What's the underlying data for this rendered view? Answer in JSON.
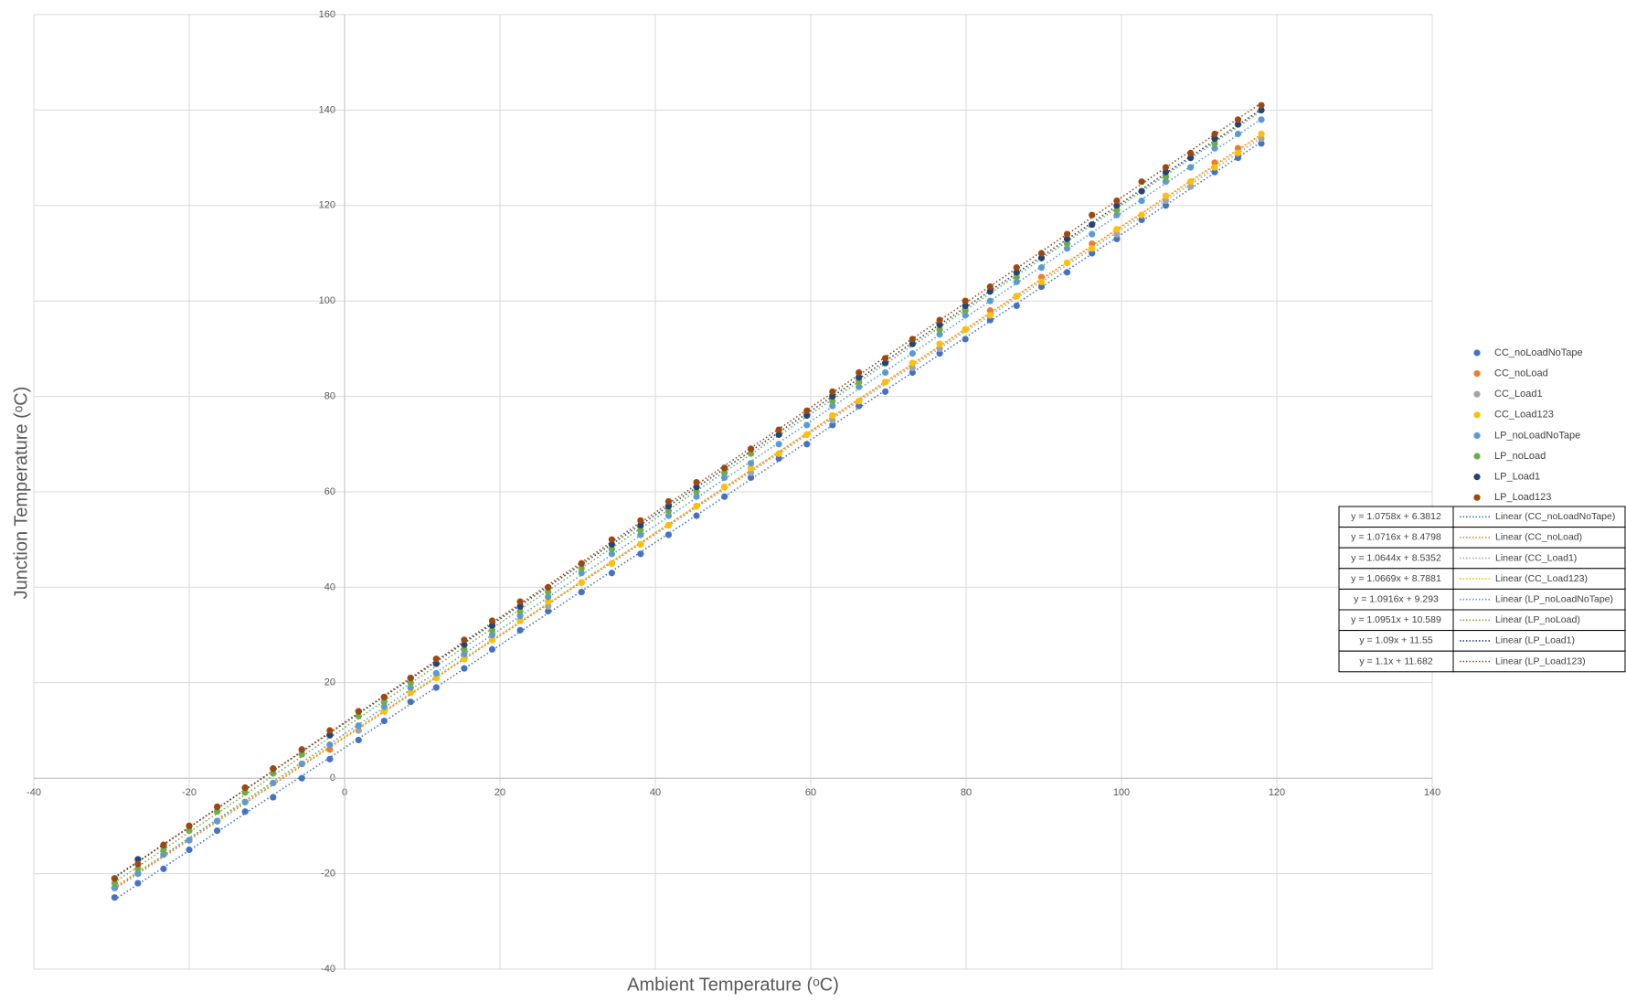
{
  "chart_data": {
    "type": "scatter",
    "x_label": "Ambient Temperature (ᵒC)",
    "y_label": "Junction Temperature (ᵒC)",
    "x": [
      -29.6,
      -26.6,
      -23.3,
      -20.0,
      -16.4,
      -12.8,
      -9.2,
      -5.5,
      -1.9,
      1.8,
      5.1,
      8.5,
      11.8,
      15.4,
      19.0,
      22.6,
      26.2,
      30.5,
      34.4,
      38.1,
      41.7,
      45.3,
      48.9,
      52.3,
      55.9,
      59.5,
      62.8,
      66.2,
      69.6,
      73.1,
      76.6,
      79.9,
      83.1,
      86.5,
      89.7,
      93.0,
      96.2,
      99.4,
      102.6,
      105.7,
      108.9,
      112.0,
      115.0,
      118.0
    ],
    "series": [
      {
        "name": "CC_noLoadNoTape",
        "color": "#4472c4",
        "values": [
          -25,
          -22,
          -19,
          -15,
          -11,
          -7,
          -4,
          0,
          4,
          8,
          12,
          16,
          19,
          23,
          27,
          31,
          35,
          39,
          43,
          47,
          51,
          55,
          59,
          63,
          67,
          70,
          74,
          78,
          81,
          85,
          89,
          92,
          96,
          99,
          103,
          106,
          110,
          113,
          117,
          120,
          124,
          127,
          130,
          133
        ],
        "trendline": {
          "label": "y = 1.0758x + 6.3812",
          "name": "Linear (CC_noLoadNoTape)",
          "slope": 1.0758,
          "intercept": 6.3812
        }
      },
      {
        "name": "CC_noLoad",
        "color": "#ed7d31",
        "values": [
          -23,
          -20,
          -16,
          -13,
          -9,
          -5,
          -1,
          3,
          6,
          10,
          14,
          18,
          21,
          25,
          29,
          33,
          37,
          41,
          45,
          49,
          53,
          57,
          61,
          65,
          68,
          72,
          76,
          79,
          83,
          87,
          91,
          94,
          98,
          101,
          105,
          108,
          112,
          115,
          118,
          122,
          125,
          129,
          132,
          135
        ],
        "trendline": {
          "label": "y = 1.0716x + 8.4798",
          "name": "Linear (CC_noLoad)",
          "slope": 1.0716,
          "intercept": 8.4798
        }
      },
      {
        "name": "CC_Load1",
        "color": "#a5a5a5",
        "values": [
          -23,
          -20,
          -16,
          -13,
          -9,
          -5,
          -1,
          3,
          7,
          10,
          14,
          18,
          21,
          25,
          29,
          33,
          36,
          41,
          45,
          49,
          53,
          57,
          61,
          64,
          68,
          72,
          75,
          79,
          83,
          86,
          90,
          94,
          97,
          101,
          104,
          108,
          111,
          114,
          118,
          121,
          124,
          128,
          131,
          134
        ],
        "trendline": {
          "label": "y = 1.0644x + 8.5352",
          "name": "Linear (CC_Load1)",
          "slope": 1.0644,
          "intercept": 8.5352
        }
      },
      {
        "name": "CC_Load123",
        "color": "#ffc000",
        "values": [
          -23,
          -20,
          -16,
          -13,
          -9,
          -5,
          -1,
          3,
          7,
          11,
          14,
          18,
          21,
          25,
          29,
          33,
          37,
          41,
          45,
          49,
          53,
          57,
          61,
          65,
          68,
          72,
          76,
          79,
          83,
          87,
          91,
          94,
          97,
          101,
          104,
          108,
          111,
          115,
          118,
          122,
          125,
          128,
          131,
          135
        ],
        "trendline": {
          "label": "y = 1.0669x + 8.7881",
          "name": "Linear (CC_Load123)",
          "slope": 1.0669,
          "intercept": 8.7881
        }
      },
      {
        "name": "LP_noLoadNoTape",
        "color": "#5b9bd5",
        "values": [
          -23,
          -20,
          -16,
          -13,
          -9,
          -5,
          -1,
          3,
          7,
          11,
          15,
          19,
          22,
          26,
          30,
          34,
          38,
          43,
          47,
          51,
          55,
          59,
          63,
          66,
          70,
          74,
          78,
          82,
          85,
          89,
          93,
          97,
          100,
          104,
          107,
          111,
          114,
          118,
          121,
          125,
          128,
          132,
          135,
          138
        ],
        "trendline": {
          "label": "y = 1.0916x + 9.293",
          "name": "Linear (LP_noLoadNoTape)",
          "slope": 1.0916,
          "intercept": 9.293
        }
      },
      {
        "name": "LP_noLoad",
        "color": "#70ad47",
        "values": [
          -22,
          -19,
          -15,
          -11,
          -7,
          -3,
          1,
          5,
          9,
          13,
          16,
          20,
          24,
          27,
          31,
          35,
          39,
          44,
          48,
          52,
          56,
          60,
          64,
          68,
          72,
          76,
          79,
          83,
          87,
          91,
          94,
          98,
          102,
          105,
          109,
          112,
          116,
          119,
          123,
          126,
          130,
          133,
          137,
          140
        ],
        "trendline": {
          "label": "y = 1.0951x + 10.589",
          "name": "Linear (LP_noLoad)",
          "slope": 1.0951,
          "intercept": 10.589
        }
      },
      {
        "name": "LP_Load1",
        "color": "#264478",
        "values": [
          -21,
          -17,
          -14,
          -10,
          -6,
          -2,
          2,
          6,
          9,
          14,
          17,
          21,
          24,
          28,
          32,
          36,
          40,
          45,
          49,
          53,
          57,
          61,
          65,
          69,
          72,
          76,
          80,
          84,
          87,
          91,
          95,
          99,
          102,
          106,
          109,
          113,
          116,
          120,
          123,
          127,
          130,
          134,
          137,
          140
        ],
        "trendline": {
          "label": "y = 1.09x + 11.55",
          "name": "Linear (LP_Load1)",
          "slope": 1.09,
          "intercept": 11.55
        }
      },
      {
        "name": "LP_Load123",
        "color": "#9e480e",
        "values": [
          -21,
          -18,
          -14,
          -10,
          -6,
          -2,
          2,
          6,
          10,
          14,
          17,
          21,
          25,
          29,
          33,
          37,
          40,
          45,
          50,
          54,
          58,
          62,
          65,
          69,
          73,
          77,
          81,
          85,
          88,
          92,
          96,
          100,
          103,
          107,
          110,
          114,
          118,
          121,
          125,
          128,
          131,
          135,
          138,
          141
        ],
        "trendline": {
          "label": "y = 1.1x + 11.682",
          "name": "Linear (LP_Load123)",
          "slope": 1.1,
          "intercept": 11.682
        }
      }
    ],
    "xlim": [
      -40,
      140
    ],
    "ylim": [
      -40,
      160
    ],
    "xticks": [
      -40,
      -20,
      0,
      20,
      40,
      60,
      80,
      100,
      120,
      140
    ],
    "yticks": [
      -40,
      -20,
      0,
      20,
      40,
      60,
      80,
      100,
      120,
      140,
      160
    ],
    "grid": true,
    "legend": "right"
  }
}
